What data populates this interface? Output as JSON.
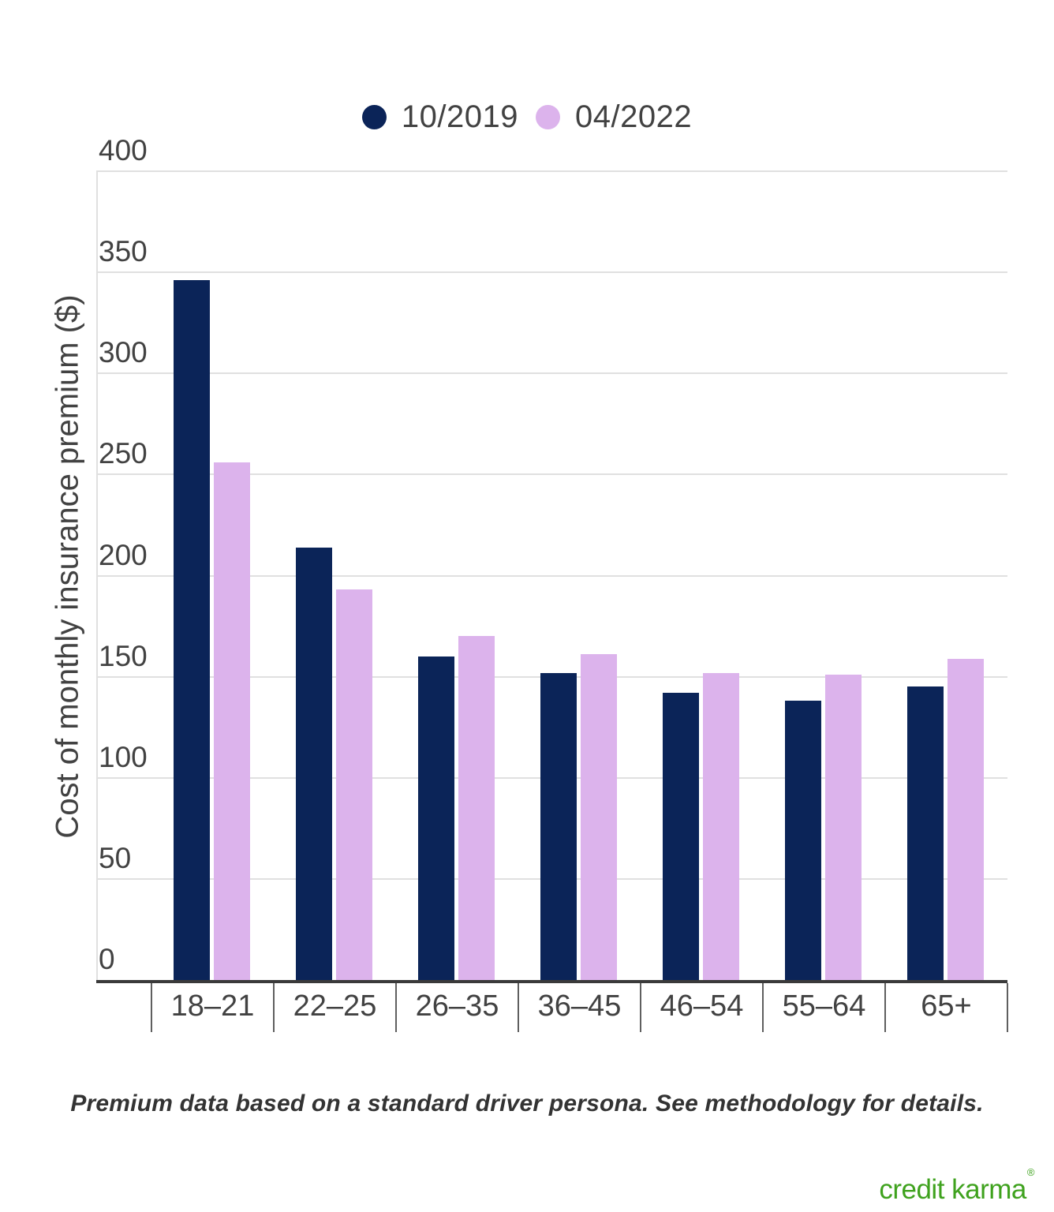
{
  "legend": [
    {
      "label": "10/2019",
      "color": "#0B2458"
    },
    {
      "label": "04/2022",
      "color": "#DCB3EC"
    }
  ],
  "chart_data": {
    "type": "bar",
    "title": "",
    "xlabel": "",
    "ylabel": "Cost of monthly insurance premium ($)",
    "categories": [
      "18–21",
      "22–25",
      "26–35",
      "36–45",
      "46–54",
      "55–64",
      "65+"
    ],
    "series": [
      {
        "name": "10/2019",
        "color": "#0B2458",
        "values": [
          346,
          214,
          160,
          152,
          142,
          138,
          145
        ]
      },
      {
        "name": "04/2022",
        "color": "#DCB3EC",
        "values": [
          256,
          193,
          170,
          161,
          152,
          151,
          159
        ]
      }
    ],
    "ylim": [
      0,
      400
    ],
    "yticks": [
      0,
      50,
      100,
      150,
      200,
      250,
      300,
      350,
      400
    ],
    "grid": true,
    "legend_position": "top"
  },
  "colors": {
    "grid": "#E0E0E0",
    "axis": "#3A3A3A",
    "tick_divider": "#5F5F5F",
    "label_text": "#424242",
    "footnote_text": "#333333"
  },
  "footnote": "Premium data based on a standard driver persona. See methodology for details.",
  "branding": {
    "logo_text": "credit karma",
    "registered_mark": "®",
    "color": "#3FA21E"
  }
}
